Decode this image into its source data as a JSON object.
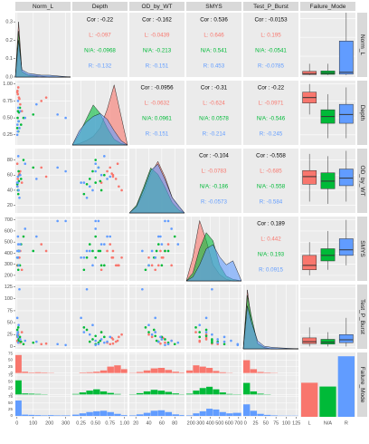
{
  "chart_data": {
    "type": "pairs",
    "variables": [
      "Norm_L",
      "Depth",
      "OD_by_WT",
      "SMYS",
      "Test_P_Burst",
      "Failure_Mode"
    ],
    "groups": [
      {
        "name": "L",
        "color": "#F8766D"
      },
      {
        "name": "N/A",
        "color": "#00BA38"
      },
      {
        "name": "R",
        "color": "#619CFF"
      }
    ],
    "lims": [
      [
        -10,
        330
      ],
      [
        0.1,
        1.05
      ],
      [
        10,
        95
      ],
      [
        150,
        730
      ],
      [
        -5,
        130
      ]
    ],
    "ticks": [
      [
        0,
        100,
        200,
        300
      ],
      [
        0.25,
        {
          "value": 0.5,
          "label": "0.50"
        },
        0.75,
        {
          "value": 1,
          "label": "1.00"
        }
      ],
      [
        20,
        40,
        60,
        80
      ],
      [
        200,
        300,
        400,
        500,
        600,
        700
      ],
      [
        0,
        25,
        50,
        75,
        100,
        125
      ]
    ],
    "density_yticks": [
      {
        "value": 0,
        "label": "0.0"
      },
      0.1,
      0.2,
      0.3
    ],
    "density": [
      {
        "ylim": [
          0,
          0.35
        ],
        "grid": [
          -10,
          10,
          30,
          70,
          110,
          150,
          200,
          260,
          330
        ],
        "series": [
          [
            0,
            0.3,
            0.03,
            0.01,
            0.01,
            0.005,
            0,
            0,
            0
          ],
          [
            0,
            0.25,
            0.03,
            0.01,
            0.005,
            0,
            0,
            0,
            0
          ],
          [
            0,
            0.2,
            0.04,
            0.02,
            0.015,
            0.01,
            0.01,
            0.005,
            0
          ]
        ]
      },
      {
        "ylim": [
          0,
          4.5
        ],
        "grid": [
          0.1,
          0.22,
          0.34,
          0.46,
          0.58,
          0.7,
          0.82,
          0.94,
          1.05
        ],
        "series": [
          [
            0,
            0.1,
            0.3,
            0.6,
            1.2,
            2.5,
            4.2,
            2,
            0
          ],
          [
            0,
            0.8,
            1.8,
            2.8,
            2.2,
            1.2,
            0.4,
            0.1,
            0
          ],
          [
            0,
            1,
            1.6,
            2,
            2.2,
            1.8,
            1,
            0.3,
            0
          ]
        ]
      },
      {
        "ylim": [
          0,
          0.05
        ],
        "grid": [
          10,
          21,
          32,
          43,
          54,
          65,
          76,
          87,
          95
        ],
        "series": [
          [
            0,
            0.005,
            0.015,
            0.03,
            0.04,
            0.028,
            0.012,
            0.004,
            0
          ],
          [
            0,
            0.006,
            0.02,
            0.035,
            0.03,
            0.02,
            0.008,
            0.002,
            0
          ],
          [
            0,
            0.005,
            0.018,
            0.033,
            0.038,
            0.026,
            0.012,
            0.005,
            0
          ]
        ]
      },
      {
        "ylim": [
          0,
          0.008
        ],
        "grid": [
          150,
          220,
          290,
          360,
          430,
          500,
          570,
          640,
          730
        ],
        "series": [
          [
            0,
            0.003,
            0.0075,
            0.005,
            0.002,
            0.0008,
            0.0002,
            0,
            0
          ],
          [
            0,
            0.001,
            0.004,
            0.006,
            0.005,
            0.002,
            0.0006,
            0.0002,
            0
          ],
          [
            0,
            0.0005,
            0.002,
            0.004,
            0.0045,
            0.003,
            0.002,
            0.0025,
            0
          ]
        ]
      },
      {
        "ylim": [
          0,
          0.12
        ],
        "grid": [
          -5,
          5,
          15,
          30,
          46,
          63,
          80,
          105,
          130
        ],
        "series": [
          [
            0,
            0.11,
            0.05,
            0.01,
            0.003,
            0,
            0,
            0,
            0
          ],
          [
            0,
            0.1,
            0.06,
            0.01,
            0.002,
            0,
            0,
            0,
            0
          ],
          [
            0,
            0.08,
            0.05,
            0.015,
            0.005,
            0.003,
            0.002,
            0.001,
            0
          ]
        ]
      }
    ],
    "observations": [
      {
        "group": 0,
        "values": [
          5,
          0.85,
          55,
          290,
          10
        ]
      },
      {
        "group": 0,
        "values": [
          12,
          0.8,
          60,
          360,
          15
        ]
      },
      {
        "group": 0,
        "values": [
          3,
          0.9,
          45,
          290,
          20
        ]
      },
      {
        "group": 0,
        "values": [
          20,
          0.7,
          65,
          420,
          8
        ]
      },
      {
        "group": 0,
        "values": [
          150,
          0.75,
          70,
          480,
          5
        ]
      },
      {
        "group": 0,
        "values": [
          8,
          0.95,
          40,
          360,
          25
        ]
      },
      {
        "group": 0,
        "values": [
          30,
          0.6,
          50,
          250,
          30
        ]
      },
      {
        "group": 0,
        "values": [
          2,
          0.88,
          75,
          290,
          12
        ]
      },
      {
        "group": 0,
        "values": [
          180,
          0.8,
          58,
          420,
          6
        ]
      },
      {
        "group": 0,
        "values": [
          15,
          0.78,
          62,
          360,
          18
        ]
      },
      {
        "group": 1,
        "values": [
          4,
          0.5,
          50,
          360,
          22
        ]
      },
      {
        "group": 1,
        "values": [
          10,
          0.45,
          65,
          420,
          15
        ]
      },
      {
        "group": 1,
        "values": [
          6,
          0.6,
          40,
          290,
          30
        ]
      },
      {
        "group": 1,
        "values": [
          25,
          0.4,
          55,
          480,
          10
        ]
      },
      {
        "group": 1,
        "values": [
          100,
          0.55,
          70,
          420,
          8
        ]
      },
      {
        "group": 1,
        "values": [
          2,
          0.35,
          48,
          360,
          35
        ]
      },
      {
        "group": 1,
        "values": [
          18,
          0.65,
          60,
          290,
          20
        ]
      },
      {
        "group": 1,
        "values": [
          40,
          0.5,
          80,
          550,
          5
        ]
      },
      {
        "group": 1,
        "values": [
          8,
          0.3,
          35,
          250,
          40
        ]
      },
      {
        "group": 1,
        "values": [
          12,
          0.58,
          52,
          420,
          12
        ]
      },
      {
        "group": 2,
        "values": [
          3,
          0.4,
          45,
          420,
          25
        ]
      },
      {
        "group": 2,
        "values": [
          20,
          0.6,
          60,
          480,
          15
        ]
      },
      {
        "group": 2,
        "values": [
          250,
          0.55,
          70,
          690,
          5
        ]
      },
      {
        "group": 2,
        "values": [
          5,
          0.3,
          50,
          360,
          30
        ]
      },
      {
        "group": 2,
        "values": [
          120,
          0.7,
          55,
          550,
          10
        ]
      },
      {
        "group": 2,
        "values": [
          10,
          0.45,
          40,
          290,
          45
        ]
      },
      {
        "group": 2,
        "values": [
          8,
          0.65,
          85,
          480,
          8
        ]
      },
      {
        "group": 2,
        "values": [
          300,
          0.5,
          65,
          690,
          3
        ]
      },
      {
        "group": 2,
        "values": [
          15,
          0.35,
          30,
          420,
          120
        ]
      },
      {
        "group": 2,
        "values": [
          6,
          0.75,
          58,
          550,
          20
        ]
      },
      {
        "group": 2,
        "values": [
          2,
          0.25,
          50,
          360,
          60
        ]
      },
      {
        "group": 2,
        "values": [
          50,
          0.5,
          75,
          620,
          12
        ]
      }
    ],
    "correlations": [
      {
        "row": 0,
        "col": 1,
        "cor": "Cor : -0.22",
        "groups": [
          "L: -0.097",
          "N/A: -0.0968",
          "R: -0.132"
        ]
      },
      {
        "row": 0,
        "col": 2,
        "cor": "Cor : -0.162",
        "groups": [
          "L: -0.0439",
          "N/A: -0.213",
          "R: -0.151"
        ]
      },
      {
        "row": 0,
        "col": 3,
        "cor": "Cor : 0.536",
        "groups": [
          "L: 0.646",
          "N/A: 0.541",
          "R: 0.453"
        ]
      },
      {
        "row": 0,
        "col": 4,
        "cor": "Cor : -0.0153",
        "groups": [
          "L: 0.195",
          "N/A: -0.0541",
          "R: -0.0785"
        ]
      },
      {
        "row": 1,
        "col": 2,
        "cor": "Cor : -0.0956",
        "groups": [
          "L: -0.0632",
          "N/A: 0.0961",
          "R: -0.151"
        ]
      },
      {
        "row": 1,
        "col": 3,
        "cor": "Cor : -0.31",
        "groups": [
          "L: -0.624",
          "N/A: 0.0578",
          "R: -0.214"
        ]
      },
      {
        "row": 1,
        "col": 4,
        "cor": "Cor : -0.22",
        "groups": [
          "L: -0.0971",
          "N/A: -0.546",
          "R: -0.245"
        ]
      },
      {
        "row": 2,
        "col": 3,
        "cor": "Cor : -0.104",
        "groups": [
          "L: -0.0783",
          "N/A: -0.186",
          "R: -0.0573"
        ]
      },
      {
        "row": 2,
        "col": 4,
        "cor": "Cor : -0.558",
        "groups": [
          "L: -0.685",
          "N/A: -0.558",
          "R: -0.584"
        ]
      },
      {
        "row": 3,
        "col": 4,
        "cor": "Cor : 0.189",
        "groups": [
          "L: 0.442",
          "N/A: 0.193",
          "R: 0.0915"
        ]
      }
    ],
    "boxplots": [
      [
        [
          0,
          3,
          8,
          20,
          60
        ],
        [
          0,
          4,
          10,
          22,
          60
        ],
        [
          0,
          5,
          15,
          180,
          330
        ]
      ],
      [
        [
          0.55,
          0.72,
          0.8,
          0.88,
          1.0
        ],
        [
          0.2,
          0.42,
          0.52,
          0.62,
          0.85
        ],
        [
          0.2,
          0.42,
          0.55,
          0.7,
          0.95
        ]
      ],
      [
        [
          25,
          48,
          58,
          66,
          88
        ],
        [
          22,
          42,
          52,
          63,
          85
        ],
        [
          25,
          46,
          56,
          68,
          92
        ]
      ],
      [
        [
          200,
          250,
          290,
          380,
          500
        ],
        [
          250,
          330,
          380,
          440,
          600
        ],
        [
          290,
          380,
          430,
          530,
          700
        ]
      ],
      [
        [
          0,
          6,
          10,
          18,
          40
        ],
        [
          0,
          5,
          9,
          15,
          30
        ],
        [
          0,
          8,
          14,
          25,
          60
        ]
      ]
    ],
    "histogram_ylim": [
      0,
      80
    ],
    "histogram_yticks": [
      0,
      25,
      50,
      75
    ],
    "histograms": [
      {
        "bins": [
          -10,
          30,
          70,
          110,
          150,
          190,
          230,
          270,
          330
        ],
        "counts": [
          [
            70,
            5,
            2,
            3,
            2,
            1,
            0,
            0
          ],
          [
            55,
            4,
            3,
            2,
            1,
            0,
            0,
            0
          ],
          [
            60,
            5,
            4,
            3,
            2,
            3,
            2,
            2
          ]
        ]
      },
      {
        "bins": [
          0.1,
          0.22,
          0.34,
          0.46,
          0.58,
          0.7,
          0.82,
          0.94,
          1.05
        ],
        "counts": [
          [
            0,
            2,
            3,
            5,
            10,
            25,
            30,
            15
          ],
          [
            2,
            8,
            15,
            20,
            12,
            6,
            2,
            0
          ],
          [
            5,
            10,
            15,
            18,
            20,
            15,
            8,
            3
          ]
        ]
      },
      {
        "bins": [
          10,
          21,
          32,
          43,
          54,
          65,
          76,
          87,
          95
        ],
        "counts": [
          [
            1,
            4,
            10,
            18,
            20,
            12,
            5,
            2
          ],
          [
            1,
            5,
            12,
            18,
            15,
            10,
            4,
            1
          ],
          [
            2,
            6,
            12,
            20,
            22,
            15,
            6,
            3
          ]
        ]
      },
      {
        "bins": [
          150,
          220,
          290,
          360,
          430,
          500,
          570,
          640,
          730
        ],
        "counts": [
          [
            10,
            30,
            25,
            20,
            8,
            3,
            1,
            0
          ],
          [
            3,
            15,
            25,
            30,
            20,
            8,
            2,
            1
          ],
          [
            2,
            10,
            18,
            28,
            25,
            15,
            10,
            12
          ]
        ]
      },
      {
        "bins": [
          -5,
          12,
          29,
          46,
          63,
          80,
          97,
          114,
          130
        ],
        "counts": [
          [
            50,
            15,
            4,
            2,
            1,
            0,
            0,
            0
          ],
          [
            45,
            12,
            3,
            1,
            0,
            0,
            0,
            0
          ],
          [
            45,
            20,
            8,
            4,
            2,
            1,
            1,
            1
          ]
        ]
      }
    ],
    "bar_counts": [
      45,
      40,
      80
    ],
    "bar_ylim": [
      0,
      85
    ]
  }
}
